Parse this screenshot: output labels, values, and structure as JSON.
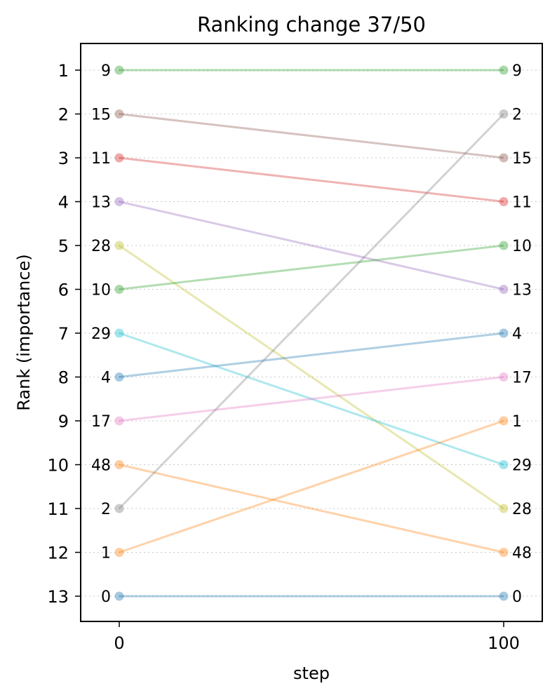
{
  "chart_data": {
    "type": "line",
    "title": "Ranking change 37/50",
    "xlabel": "step",
    "ylabel": "Rank (importance)",
    "x": [
      0,
      100
    ],
    "x_ticks": [
      "0",
      "100"
    ],
    "y_ticks": [
      "1",
      "2",
      "3",
      "4",
      "5",
      "6",
      "7",
      "8",
      "9",
      "10",
      "11",
      "12",
      "13"
    ],
    "ylim": [
      13.6,
      0.4
    ],
    "y_inverted": true,
    "grid": "horizontal-dotted",
    "legend": "none",
    "series": [
      {
        "id": 9,
        "ranks": [
          1,
          1
        ],
        "labels": [
          "9",
          "9"
        ],
        "color": "#2ca02c"
      },
      {
        "id": 15,
        "ranks": [
          2,
          3
        ],
        "labels": [
          "15",
          "15"
        ],
        "color": "#8c564b"
      },
      {
        "id": 11,
        "ranks": [
          3,
          4
        ],
        "labels": [
          "11",
          "11"
        ],
        "color": "#d62728"
      },
      {
        "id": 13,
        "ranks": [
          4,
          6
        ],
        "labels": [
          "13",
          "13"
        ],
        "color": "#9467bd"
      },
      {
        "id": 28,
        "ranks": [
          5,
          11
        ],
        "labels": [
          "28",
          "28"
        ],
        "color": "#bcbd22"
      },
      {
        "id": 10,
        "ranks": [
          6,
          5
        ],
        "labels": [
          "10",
          "10"
        ],
        "color": "#2ca02c"
      },
      {
        "id": 29,
        "ranks": [
          7,
          10
        ],
        "labels": [
          "29",
          "29"
        ],
        "color": "#17becf"
      },
      {
        "id": 4,
        "ranks": [
          8,
          7
        ],
        "labels": [
          "4",
          "4"
        ],
        "color": "#1f77b4"
      },
      {
        "id": 17,
        "ranks": [
          9,
          8
        ],
        "labels": [
          "17",
          "17"
        ],
        "color": "#e377c2"
      },
      {
        "id": 48,
        "ranks": [
          10,
          12
        ],
        "labels": [
          "48",
          "48"
        ],
        "color": "#ff7f0e"
      },
      {
        "id": 2,
        "ranks": [
          11,
          2
        ],
        "labels": [
          "2",
          "2"
        ],
        "color": "#7f7f7f"
      },
      {
        "id": 1,
        "ranks": [
          12,
          9
        ],
        "labels": [
          "1",
          "1"
        ],
        "color": "#ff7f0e"
      },
      {
        "id": 0,
        "ranks": [
          13,
          13
        ],
        "labels": [
          "0",
          "0"
        ],
        "color": "#1f77b4"
      }
    ]
  }
}
